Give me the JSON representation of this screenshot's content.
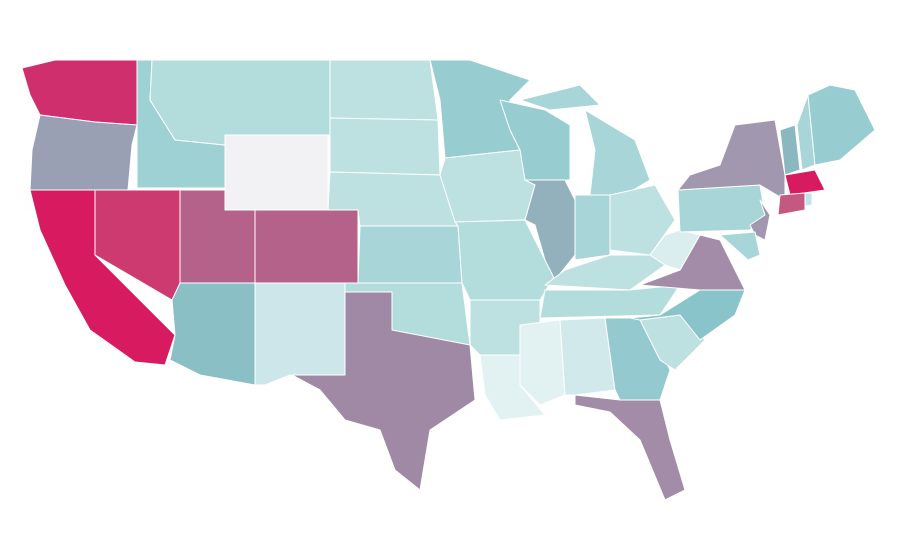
{
  "map": {
    "fill_colors": [
      "#d02f6e",
      "#9aa0b4",
      "#d81b60",
      "#cd3a70",
      "#9dd1d3",
      "#b3dcdc",
      "#f2f2f4",
      "#b4628a",
      "#b5628a",
      "#8abfc6",
      "#cde6ea",
      "#bde0e1",
      "#bde0e1",
      "#bde0e1",
      "#a8d5d7",
      "#b3dcdc",
      "#a089a5",
      "#97cdd0",
      "#bde0e1",
      "#b3dcdc",
      "#bde0e1",
      "#e2f1f2",
      "#97cdd0",
      "#93b1bd",
      "#a8d5d7",
      "#a8d5d7",
      "#a8d5d7",
      "#bde0e1",
      "#bde0e1",
      "#b3dcdc",
      "#e2f1f2",
      "#d1e9ea",
      "#93c9cf",
      "#a28ca8",
      "#bde0e1",
      "#8ac4cb",
      "#a28ca8",
      "#dbeeef",
      "#a8d5d7",
      "#a197ae",
      "#a197ae",
      "#a8d5d7",
      "#8ab7c0",
      "#a8d5d7",
      "#97cdd0",
      "#d81b60",
      "#c4587f",
      "#c0e5e6"
    ],
    "border_color": "#ffffff"
  }
}
